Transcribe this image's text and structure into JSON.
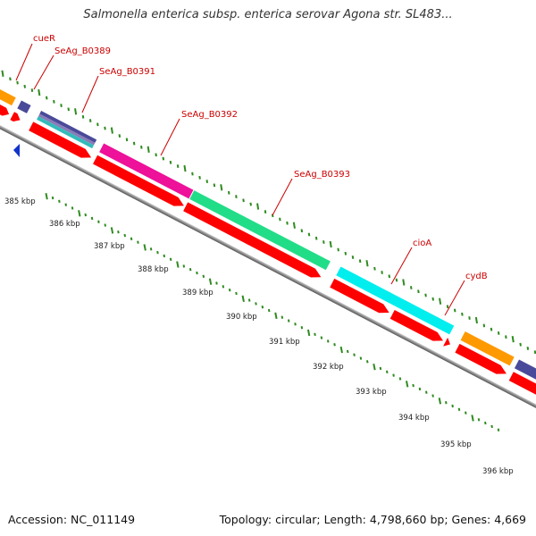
{
  "title": "Salmonella enterica subsp. enterica serovar Agona str. SL483...",
  "footer": {
    "accession": "Accession: NC_011149",
    "summary": "Topology: circular; Length: 4,798,660 bp; Genes: 4,669"
  },
  "scale_labels": [
    "385 kbp",
    "386 kbp",
    "387 kbp",
    "388 kbp",
    "389 kbp",
    "390 kbp",
    "391 kbp",
    "392 kbp",
    "393 kbp",
    "394 kbp",
    "395 kbp",
    "396 kbp"
  ],
  "gene_labels": [
    "cueR",
    "SeAg_B0389",
    "SeAg_B0391",
    "SeAg_B0392",
    "SeAg_B0393",
    "cioA",
    "cydB"
  ],
  "colors": {
    "cds": "#ff0000",
    "backbone": "#888888",
    "tick": "#2e8b1f",
    "label": "#cc0000",
    "orange": "#ff9900",
    "navy": "#4a4a9a",
    "teal": "#33bbbb",
    "magenta": "#ee1199",
    "green": "#22dd88",
    "cyan": "#00eeee",
    "blue": "#1133cc"
  }
}
